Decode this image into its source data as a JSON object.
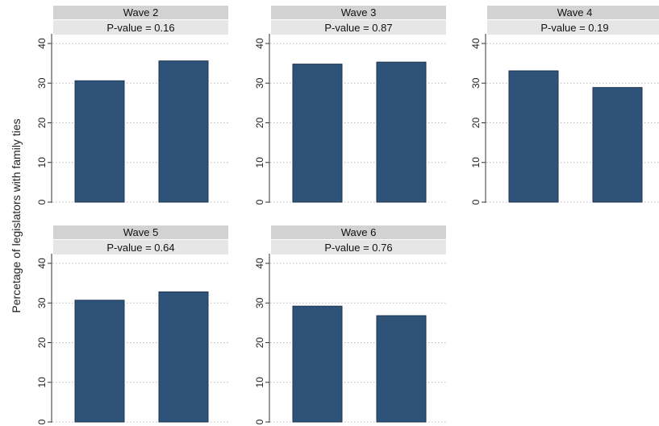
{
  "chart_data": {
    "type": "bar",
    "ylabel": "Percetage of legislators with family ties",
    "ylim": [
      0,
      40
    ],
    "yticks": [
      0,
      10,
      20,
      30,
      40
    ],
    "grid": true,
    "bar_color": "#2f5378",
    "header_color": "#d2d2d2",
    "subheader_color": "#e6e6e6",
    "panels": [
      {
        "title": "Wave 2",
        "subtitle": "P-value = 0.16",
        "values": [
          30.6,
          35.6
        ]
      },
      {
        "title": "Wave 3",
        "subtitle": "P-value = 0.87",
        "values": [
          34.8,
          35.3
        ]
      },
      {
        "title": "Wave 4",
        "subtitle": "P-value = 0.19",
        "values": [
          33.1,
          28.9
        ]
      },
      {
        "title": "Wave 5",
        "subtitle": "P-value = 0.64",
        "values": [
          30.7,
          32.8
        ]
      },
      {
        "title": "Wave 6",
        "subtitle": "P-value = 0.76",
        "values": [
          29.2,
          26.8
        ]
      }
    ]
  }
}
